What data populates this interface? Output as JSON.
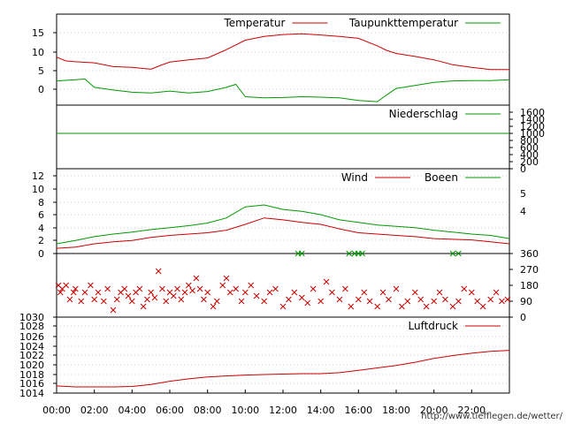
{
  "chart_data": [
    {
      "type": "line",
      "panel": "temperature",
      "y_ticks": [
        "15",
        "10",
        "5",
        "0"
      ],
      "ylim": [
        -4,
        19
      ],
      "grid": true,
      "legend_position": "top-right",
      "series": [
        {
          "name": "Temperatur",
          "color": "#cc0000",
          "x": [
            0,
            0.5,
            1,
            2,
            3,
            4,
            5,
            5.5,
            6,
            7,
            8,
            9,
            10,
            11,
            12,
            13,
            14,
            15,
            16,
            17,
            17.5,
            18,
            19,
            20,
            21,
            22,
            23,
            24
          ],
          "values": [
            8.5,
            7.5,
            7.3,
            7,
            6,
            5.8,
            5.3,
            6.3,
            7.2,
            7.8,
            8.3,
            10.5,
            13,
            14,
            14.5,
            14.7,
            14.4,
            14,
            13.5,
            11.5,
            10.3,
            9.5,
            8.7,
            7.8,
            6.5,
            5.8,
            5.2,
            5.2
          ]
        },
        {
          "name": "Taupunkttemperatur",
          "color": "#009900",
          "x": [
            0,
            1,
            1.5,
            2,
            3,
            4,
            5,
            6,
            7,
            8,
            9,
            9.5,
            10,
            11,
            12,
            13,
            14,
            15,
            16,
            17,
            17.5,
            18,
            19,
            20,
            21,
            22,
            23,
            24
          ],
          "values": [
            2.2,
            2.5,
            2.7,
            0.5,
            -0.2,
            -0.8,
            -1,
            -0.5,
            -1,
            -0.6,
            0.5,
            1.3,
            -2,
            -2.3,
            -2.2,
            -2,
            -2.1,
            -2.3,
            -3,
            -3.3,
            -1.5,
            0.2,
            1,
            1.8,
            2.2,
            2.3,
            2.3,
            2.5
          ]
        }
      ]
    },
    {
      "type": "line",
      "panel": "precipitation",
      "y_ticks": [
        "1600",
        "1400",
        "1200",
        "1000",
        "800",
        "600",
        "400",
        "200",
        "0"
      ],
      "ylim": [
        0,
        1600
      ],
      "legend_position": "top-right",
      "series": [
        {
          "name": "Niederschlag",
          "color": "#009900",
          "x": [
            0,
            24
          ],
          "values": [
            1000,
            1000
          ]
        }
      ]
    },
    {
      "type": "line",
      "panel": "wind",
      "y_ticks": [
        "12",
        "10",
        "8",
        "6",
        "4",
        "2",
        "0"
      ],
      "right_labels": [
        "5",
        "4"
      ],
      "ylim": [
        0,
        12
      ],
      "grid": true,
      "legend_position": "top-right",
      "series": [
        {
          "name": "Wind",
          "color": "#cc0000",
          "x": [
            0,
            1,
            2,
            3,
            4,
            5,
            6,
            7,
            8,
            9,
            10,
            11,
            12,
            13,
            14,
            15,
            16,
            17,
            18,
            19,
            20,
            21,
            22,
            23,
            24
          ],
          "values": [
            0.8,
            1,
            1.5,
            1.8,
            2,
            2.5,
            2.8,
            3,
            3.2,
            3.6,
            4.5,
            5.5,
            5.2,
            4.8,
            4.5,
            3.8,
            3.2,
            3,
            2.8,
            2.6,
            2.3,
            2.2,
            2.1,
            1.8,
            1.5
          ]
        },
        {
          "name": "Boeen",
          "color": "#009900",
          "x": [
            0,
            1,
            2,
            3,
            4,
            5,
            6,
            7,
            8,
            9,
            10,
            11,
            12,
            13,
            14,
            15,
            16,
            17,
            18,
            19,
            20,
            21,
            22,
            23,
            24
          ],
          "values": [
            1.5,
            2,
            2.6,
            3,
            3.3,
            3.7,
            4,
            4.3,
            4.7,
            5.5,
            7.2,
            7.5,
            6.8,
            6.5,
            6,
            5.2,
            4.8,
            4.4,
            4.2,
            4,
            3.6,
            3.3,
            3,
            2.8,
            2.3
          ]
        }
      ]
    },
    {
      "type": "scatter",
      "panel": "wind_direction",
      "y_ticks": [
        "360",
        "270",
        "180",
        "90",
        "0"
      ],
      "ylim": [
        0,
        360
      ],
      "series": [
        {
          "color": "#cc0000",
          "x": [
            0.1,
            0.2,
            0.3,
            0.5,
            0.7,
            0.9,
            1.0,
            1.3,
            1.5,
            1.8,
            2.0,
            2.2,
            2.5,
            2.7,
            3.0,
            3.2,
            3.4,
            3.6,
            3.8,
            4.0,
            4.2,
            4.4,
            4.6,
            4.8,
            5.0,
            5.2,
            5.4,
            5.6,
            5.8,
            6.0,
            6.2,
            6.4,
            6.6,
            6.8,
            7.0,
            7.2,
            7.4,
            7.6,
            7.8,
            8.0,
            8.3,
            8.5,
            8.8,
            9.0,
            9.2,
            9.5,
            9.8,
            10.0,
            10.3,
            10.6,
            11.0,
            11.3,
            11.6,
            12.0,
            12.3,
            12.6,
            13.0,
            13.3,
            13.6,
            14.0,
            14.3,
            14.6,
            15.0,
            15.3,
            15.6,
            16.0,
            16.3,
            16.6,
            17.0,
            17.3,
            17.6,
            18.0,
            18.3,
            18.6,
            19.0,
            19.3,
            19.6,
            20.0,
            20.3,
            20.6,
            21.0,
            21.3,
            21.6,
            22.0,
            22.3,
            22.6,
            23.0,
            23.3,
            23.6,
            23.9
          ],
          "values": [
            180,
            140,
            160,
            180,
            100,
            140,
            160,
            90,
            140,
            180,
            100,
            140,
            90,
            160,
            40,
            100,
            140,
            160,
            120,
            90,
            140,
            160,
            60,
            100,
            140,
            110,
            260,
            160,
            90,
            140,
            120,
            160,
            100,
            140,
            180,
            150,
            220,
            160,
            100,
            140,
            60,
            90,
            180,
            220,
            140,
            160,
            90,
            140,
            180,
            120,
            90,
            140,
            160,
            60,
            100,
            140,
            110,
            80,
            160,
            90,
            200,
            140,
            100,
            160,
            60,
            100,
            140,
            90,
            60,
            140,
            100,
            160,
            60,
            90,
            140,
            100,
            60,
            90,
            140,
            100,
            60,
            90,
            160,
            140,
            90,
            60,
            100,
            140,
            90,
            100
          ]
        },
        {
          "color": "#009900",
          "x": [
            12.8,
            13.0,
            15.5,
            15.8,
            16.0,
            16.2,
            21.0,
            21.3
          ],
          "values": [
            360,
            360,
            360,
            360,
            360,
            360,
            360,
            360
          ]
        }
      ]
    },
    {
      "type": "line",
      "panel": "pressure",
      "y_ticks": [
        "1030",
        "1028",
        "1026",
        "1024",
        "1022",
        "1020",
        "1018",
        "1016",
        "1014"
      ],
      "x_ticks": [
        "00:00",
        "02:00",
        "04:00",
        "06:00",
        "08:00",
        "10:00",
        "12:00",
        "14:00",
        "16:00",
        "18:00",
        "20:00",
        "22:00"
      ],
      "ylim": [
        1013,
        1030
      ],
      "grid": true,
      "legend_position": "top-right",
      "series": [
        {
          "name": "Luftdruck",
          "color": "#cc0000",
          "x": [
            0,
            1,
            2,
            3,
            4,
            5,
            6,
            7,
            8,
            9,
            10,
            11,
            12,
            13,
            14,
            15,
            16,
            17,
            18,
            19,
            20,
            21,
            22,
            23,
            24
          ],
          "values": [
            1015.5,
            1015.3,
            1015.3,
            1015.3,
            1015.4,
            1015.8,
            1016.5,
            1017.0,
            1017.4,
            1017.6,
            1017.8,
            1017.9,
            1018.0,
            1018.1,
            1018.1,
            1018.3,
            1018.8,
            1019.3,
            1019.8,
            1020.5,
            1021.3,
            1021.9,
            1022.4,
            1022.8,
            1023.0
          ]
        }
      ]
    }
  ],
  "footer": {
    "url": "http://www.tiefflegen.de/wetter/"
  }
}
